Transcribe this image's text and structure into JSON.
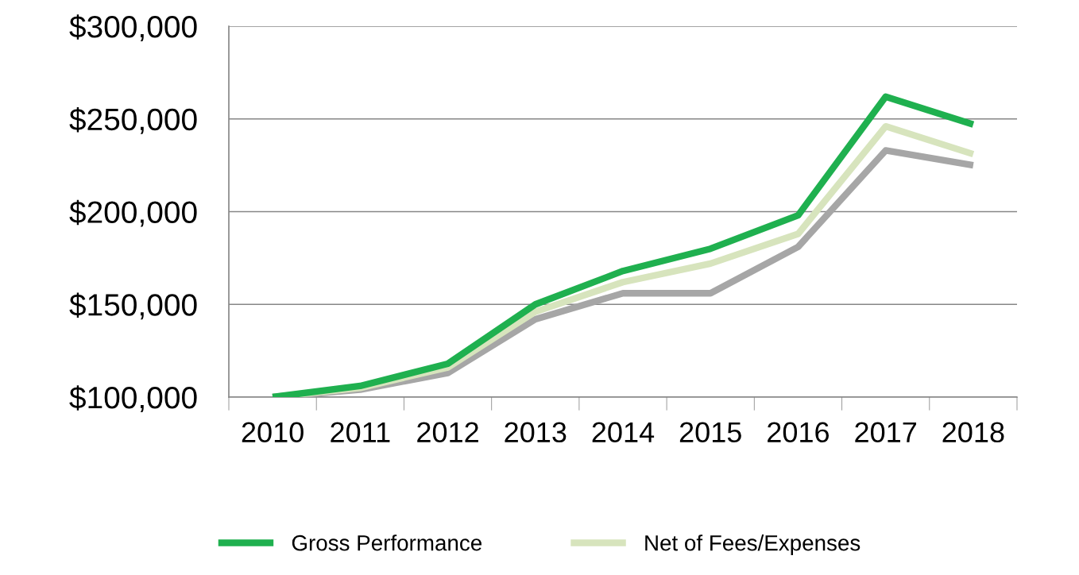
{
  "chart_data": {
    "type": "line",
    "categories": [
      "2010",
      "2011",
      "2012",
      "2013",
      "2014",
      "2015",
      "2016",
      "2017",
      "2018"
    ],
    "series": [
      {
        "name": "Gross Performance",
        "color": "#1fb04f",
        "values": [
          100000,
          106000,
          118000,
          150000,
          168000,
          180000,
          198000,
          262000,
          247000
        ]
      },
      {
        "name": "Net of Fees/Expenses",
        "color": "#d7e4bd",
        "values": [
          100000,
          105000,
          116000,
          146000,
          162000,
          172000,
          188000,
          246000,
          231000
        ]
      },
      {
        "color": "#a6a6a6",
        "values": [
          100000,
          104000,
          113000,
          142000,
          156000,
          156000,
          181000,
          233000,
          225000
        ]
      }
    ],
    "ylim": [
      100000,
      300000
    ],
    "yticks": [
      {
        "value": 100000,
        "label": "$100,000"
      },
      {
        "value": 150000,
        "label": "$150,000"
      },
      {
        "value": 200000,
        "label": "$200,000"
      },
      {
        "value": 250000,
        "label": "$250,000"
      },
      {
        "value": 300000,
        "label": "$300,000"
      }
    ],
    "grid": "y",
    "legend": "bottom",
    "marker": "none",
    "line_style": "solid"
  }
}
